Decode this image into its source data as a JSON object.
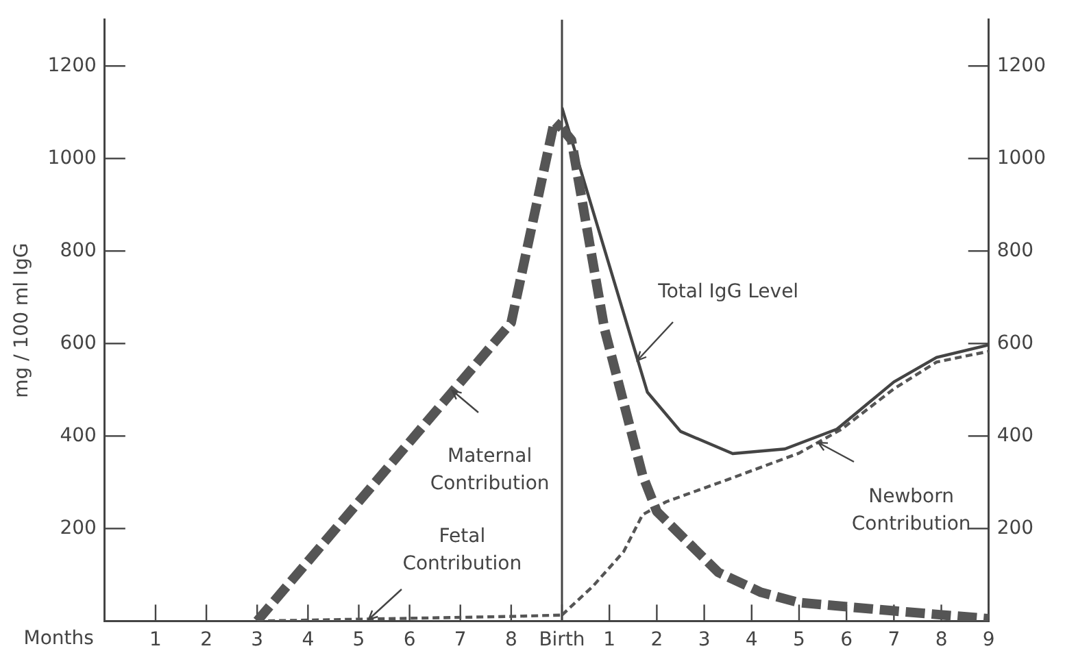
{
  "chart_data": [
    {
      "type": "line",
      "xlabel": "Months",
      "ylabel": "mg / 100 ml IgG",
      "xlim": [
        0,
        9
      ],
      "xticks": [
        1,
        2,
        3,
        4,
        5,
        6,
        7,
        8,
        {
          "value": 9,
          "label": "Birth"
        }
      ],
      "ylim": [
        0,
        1300
      ],
      "yticks": [
        200,
        400,
        600,
        800,
        1000,
        1200
      ],
      "grid": false,
      "legend": false,
      "marker": "none",
      "ref_lines": [
        {
          "axis": "x",
          "value": 9,
          "color": "#444444"
        }
      ],
      "series": [
        {
          "color": "#555555",
          "line_style": "dashed",
          "x": [
            3,
            8,
            8.85,
            9
          ],
          "values": [
            0,
            645,
            1080,
            1065
          ]
        },
        {
          "color": "#555555",
          "line_style": "dotted",
          "x": [
            3,
            8,
            9
          ],
          "values": [
            0,
            10,
            13
          ]
        }
      ],
      "annotations": [
        {
          "text": "Maternal Contribution",
          "x": 6.85,
          "y": 497
        },
        {
          "text": "Fetal Contribution",
          "x": 5.2,
          "y": 4
        }
      ]
    },
    {
      "type": "line",
      "xlim": [
        0,
        9
      ],
      "xticks": [
        1,
        2,
        3,
        4,
        5,
        6,
        7,
        8,
        9
      ],
      "ylim": [
        0,
        1300
      ],
      "yticks": [
        200,
        400,
        600,
        800,
        1000,
        1200
      ],
      "grid": false,
      "legend": false,
      "marker": "none",
      "series": [
        {
          "color": "#555555",
          "line_style": "dashed",
          "x": [
            0,
            0.2,
            0.9,
            1.7,
            2,
            3.3,
            4.2,
            5,
            7,
            9
          ],
          "values": [
            1065,
            1040,
            630,
            315,
            237,
            105,
            62,
            40,
            22,
            5
          ]
        },
        {
          "color": "#444444",
          "line_style": "solid",
          "x": [
            0,
            1.8,
            2.5,
            3.6,
            4.7,
            5.8,
            7,
            7.9,
            9
          ],
          "values": [
            1110,
            495,
            410,
            362,
            372,
            415,
            517,
            570,
            597
          ]
        },
        {
          "color": "#555555",
          "line_style": "dotted",
          "x": [
            0,
            0.65,
            1.3,
            1.7,
            2.2,
            3.5,
            5,
            5.9,
            7,
            7.9,
            9
          ],
          "values": [
            13,
            75,
            150,
            230,
            258,
            306,
            363,
            415,
            502,
            560,
            583
          ]
        }
      ],
      "annotations": [
        {
          "text": "Total IgG Level",
          "x": 1.6,
          "y": 563
        },
        {
          "text": "Newborn Contribution",
          "x": 5.4,
          "y": 386
        }
      ]
    }
  ]
}
